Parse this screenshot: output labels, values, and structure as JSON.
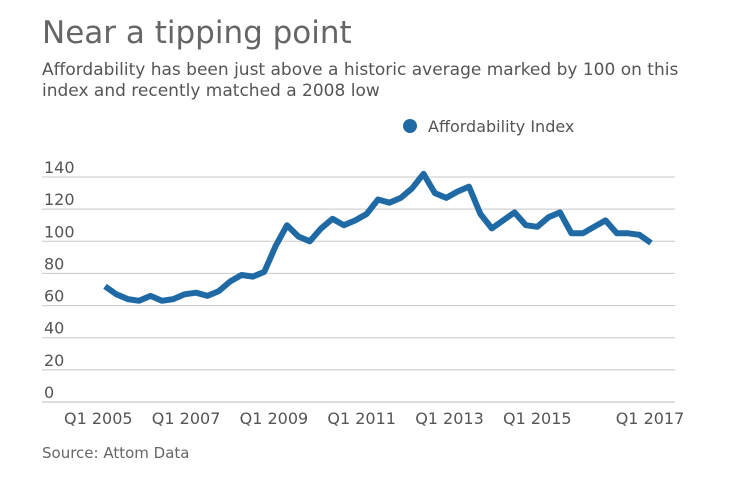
{
  "chart_data": {
    "type": "line",
    "title": "Near a tipping point",
    "subtitle": "Affordability has been just above a historic average marked by 100 on this index and recently matched a 2008 low",
    "source": "Source: Attom Data",
    "xlabel": "",
    "ylabel": "",
    "ylim": [
      0,
      140
    ],
    "ytick_values": [
      0,
      20,
      40,
      60,
      80,
      100,
      120,
      140
    ],
    "ytick_labels": [
      "0",
      "20",
      "40",
      "60",
      "80",
      "100",
      "120",
      "140"
    ],
    "xlim": [
      0,
      50
    ],
    "xtick_positions": [
      0,
      8,
      16,
      24,
      32,
      40,
      48
    ],
    "xtick_labels": [
      "Q1 2005",
      "Q1 2007",
      "Q1 2009",
      "Q1 2011",
      "Q1 2013",
      "Q1 2015",
      "Q1 2017"
    ],
    "legend_position": "top-right",
    "grid": true,
    "series": [
      {
        "name": "Affordability Index",
        "color": "#1f6aa5",
        "values": [
          72,
          67,
          64,
          63,
          66,
          63,
          64,
          67,
          68,
          66,
          69,
          75,
          79,
          78,
          81,
          97,
          110,
          103,
          100,
          108,
          114,
          110,
          113,
          117,
          126,
          124,
          127,
          133,
          142,
          130,
          127,
          131,
          134,
          117,
          108,
          113,
          118,
          110,
          109,
          115,
          118,
          105,
          105,
          109,
          113,
          105,
          105,
          104,
          99
        ]
      }
    ]
  }
}
